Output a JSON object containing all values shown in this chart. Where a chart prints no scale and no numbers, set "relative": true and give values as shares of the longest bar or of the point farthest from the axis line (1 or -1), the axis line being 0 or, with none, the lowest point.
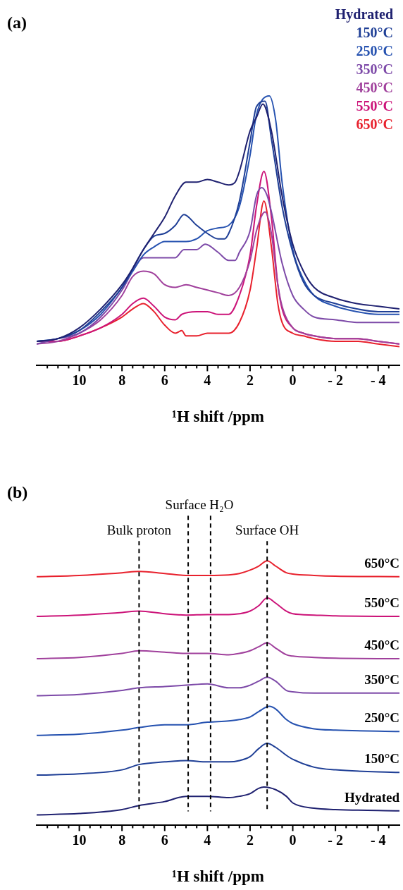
{
  "chart_data": [
    {
      "type": "line",
      "title": "(a)",
      "xlabel": "¹H shift /ppm",
      "relative": true,
      "legend": "top right",
      "xlim": [
        12,
        -5
      ],
      "xticks": [
        {
          "value": 11.5,
          "label": null
        },
        {
          "value": 11,
          "label": null
        },
        {
          "value": 10.5,
          "label": null
        },
        10,
        {
          "value": 9.5,
          "label": null
        },
        {
          "value": 9,
          "label": null
        },
        {
          "value": 8.5,
          "label": null
        },
        8,
        {
          "value": 7.5,
          "label": null
        },
        {
          "value": 7,
          "label": null
        },
        {
          "value": 6.5,
          "label": null
        },
        6,
        {
          "value": 5.5,
          "label": null
        },
        {
          "value": 5,
          "label": null
        },
        {
          "value": 4.5,
          "label": null
        },
        4,
        {
          "value": 3.5,
          "label": null
        },
        {
          "value": 3,
          "label": null
        },
        {
          "value": 2.5,
          "label": null
        },
        2,
        {
          "value": 1.5,
          "label": null
        },
        {
          "value": 1,
          "label": null
        },
        {
          "value": 0.5,
          "label": null
        },
        0,
        {
          "value": -0.5,
          "label": null
        },
        {
          "value": -1,
          "label": null
        },
        {
          "value": -1.5,
          "label": null
        },
        {
          "value": -2,
          "label": "- 2"
        },
        {
          "value": -2.5,
          "label": null
        },
        {
          "value": -3,
          "label": null
        },
        {
          "value": -3.5,
          "label": null
        },
        {
          "value": -4,
          "label": "- 4"
        },
        {
          "value": -4.5,
          "label": null
        }
      ],
      "series": [
        {
          "name": "Hydrated",
          "color": "#1f2170",
          "x": [
            12,
            11,
            10,
            9,
            8,
            7.5,
            7,
            6.5,
            6,
            5.5,
            5,
            4.5,
            4,
            3.5,
            3,
            2.7,
            2.5,
            2,
            1.7,
            1.4,
            1.0,
            0.5,
            0,
            -0.5,
            -1,
            -2,
            -3,
            -4,
            -5
          ],
          "values": [
            0.09,
            0.1,
            0.14,
            0.21,
            0.3,
            0.36,
            0.43,
            0.49,
            0.55,
            0.63,
            0.68,
            0.68,
            0.69,
            0.68,
            0.67,
            0.68,
            0.72,
            0.87,
            0.92,
            0.97,
            0.87,
            0.63,
            0.45,
            0.35,
            0.29,
            0.25,
            0.23,
            0.22,
            0.21
          ]
        },
        {
          "name": "150°C",
          "color": "#1f3f96",
          "x": [
            12,
            11,
            10,
            9,
            8,
            7.5,
            7,
            6.5,
            6,
            5.5,
            5.1,
            4.5,
            4,
            3.5,
            3.2,
            3,
            2.5,
            2,
            1.7,
            1.3,
            1.0,
            0.5,
            0,
            -0.5,
            -1,
            -2,
            -3,
            -4,
            -5
          ],
          "values": [
            0.09,
            0.1,
            0.13,
            0.2,
            0.29,
            0.36,
            0.43,
            0.48,
            0.49,
            0.52,
            0.56,
            0.52,
            0.49,
            0.47,
            0.47,
            0.49,
            0.61,
            0.83,
            0.96,
            0.98,
            0.84,
            0.59,
            0.42,
            0.31,
            0.26,
            0.23,
            0.21,
            0.2,
            0.2
          ]
        },
        {
          "name": "250°C",
          "color": "#2652b0",
          "x": [
            12,
            11,
            10,
            9,
            8,
            7.5,
            7,
            6.5,
            6,
            5.5,
            5,
            4.5,
            4,
            3.5,
            3,
            2.5,
            2,
            1.7,
            1.1,
            0.8,
            0.5,
            0,
            -0.5,
            -1,
            -2,
            -3,
            -4,
            -5
          ],
          "values": [
            0.09,
            0.1,
            0.13,
            0.19,
            0.29,
            0.35,
            0.41,
            0.44,
            0.46,
            0.46,
            0.46,
            0.47,
            0.5,
            0.51,
            0.52,
            0.59,
            0.78,
            0.93,
            1,
            0.91,
            0.68,
            0.43,
            0.32,
            0.26,
            0.22,
            0.2,
            0.19,
            0.19
          ]
        },
        {
          "name": "350°C",
          "color": "#7d4aa8",
          "x": [
            12,
            11,
            10,
            9,
            8,
            7.5,
            7,
            6.5,
            6,
            5.5,
            5.1,
            4.5,
            4.1,
            3.5,
            3,
            2.7,
            2.5,
            2,
            1.7,
            1.45,
            1.2,
            1.0,
            0.5,
            0,
            -0.5,
            -1,
            -2,
            -3,
            -4,
            -5
          ],
          "values": [
            0.08,
            0.1,
            0.12,
            0.18,
            0.28,
            0.35,
            0.4,
            0.4,
            0.4,
            0.4,
            0.43,
            0.43,
            0.45,
            0.42,
            0.39,
            0.39,
            0.42,
            0.5,
            0.63,
            0.66,
            0.63,
            0.57,
            0.38,
            0.26,
            0.21,
            0.18,
            0.17,
            0.16,
            0.16,
            0.16
          ]
        },
        {
          "name": "450°C",
          "color": "#a0409c",
          "x": [
            12,
            11,
            10,
            9,
            8,
            7.5,
            7,
            6.5,
            6,
            5.5,
            5,
            4.5,
            4,
            3.5,
            3,
            2.5,
            2,
            1.7,
            1.3,
            1.0,
            0.7,
            0.5,
            0,
            -0.5,
            -1,
            -2,
            -3,
            -4,
            -5
          ],
          "values": [
            0.08,
            0.09,
            0.12,
            0.17,
            0.26,
            0.33,
            0.35,
            0.34,
            0.3,
            0.29,
            0.3,
            0.29,
            0.28,
            0.27,
            0.26,
            0.29,
            0.39,
            0.5,
            0.57,
            0.49,
            0.3,
            0.22,
            0.14,
            0.12,
            0.11,
            0.1,
            0.1,
            0.09,
            0.08
          ]
        },
        {
          "name": "550°C",
          "color": "#cc1479",
          "x": [
            12,
            11,
            10,
            9,
            8,
            7.5,
            7,
            6.5,
            6,
            5.5,
            5.2,
            4.5,
            4,
            3.5,
            3,
            2.5,
            2,
            1.7,
            1.35,
            1.0,
            0.7,
            0.5,
            0,
            -0.5,
            -1,
            -2,
            -3,
            -4,
            -5
          ],
          "values": [
            0.09,
            0.09,
            0.11,
            0.14,
            0.19,
            0.23,
            0.25,
            0.22,
            0.18,
            0.17,
            0.19,
            0.2,
            0.2,
            0.19,
            0.19,
            0.26,
            0.41,
            0.59,
            0.72,
            0.55,
            0.3,
            0.21,
            0.14,
            0.12,
            0.11,
            0.1,
            0.1,
            0.09,
            0.08
          ]
        },
        {
          "name": "650°C",
          "color": "#e8212d",
          "x": [
            12,
            11,
            10,
            9,
            8,
            7.5,
            7,
            6.5,
            6,
            5.5,
            5.2,
            5,
            4.5,
            4,
            3.5,
            3,
            2.5,
            2,
            1.7,
            1.35,
            1.0,
            0.7,
            0.5,
            0,
            -0.5,
            -1,
            -2,
            -3,
            -4,
            -5
          ],
          "values": [
            0.09,
            0.09,
            0.11,
            0.14,
            0.18,
            0.21,
            0.23,
            0.2,
            0.15,
            0.12,
            0.13,
            0.11,
            0.11,
            0.12,
            0.12,
            0.12,
            0.16,
            0.28,
            0.43,
            0.61,
            0.44,
            0.23,
            0.16,
            0.12,
            0.11,
            0.1,
            0.09,
            0.09,
            0.08,
            0.07
          ]
        }
      ]
    },
    {
      "type": "line",
      "title": "(b)",
      "xlabel": "¹H shift /ppm",
      "relative": true,
      "xlim": [
        12,
        -5
      ],
      "xticks": [
        {
          "value": 11.5,
          "label": null
        },
        {
          "value": 11,
          "label": null
        },
        {
          "value": 10.5,
          "label": null
        },
        10,
        {
          "value": 9.5,
          "label": null
        },
        {
          "value": 9,
          "label": null
        },
        {
          "value": 8.5,
          "label": null
        },
        8,
        {
          "value": 7.5,
          "label": null
        },
        {
          "value": 7,
          "label": null
        },
        {
          "value": 6.5,
          "label": null
        },
        6,
        {
          "value": 5.5,
          "label": null
        },
        {
          "value": 5,
          "label": null
        },
        {
          "value": 4.5,
          "label": null
        },
        4,
        {
          "value": 3.5,
          "label": null
        },
        {
          "value": 3,
          "label": null
        },
        {
          "value": 2.5,
          "label": null
        },
        2,
        {
          "value": 1.5,
          "label": null
        },
        {
          "value": 1,
          "label": null
        },
        {
          "value": 0.5,
          "label": null
        },
        0,
        {
          "value": -0.5,
          "label": null
        },
        {
          "value": -1,
          "label": null
        },
        {
          "value": -1.5,
          "label": null
        },
        {
          "value": -2,
          "label": "- 2"
        },
        {
          "value": -2.5,
          "label": null
        },
        {
          "value": -3,
          "label": null
        },
        {
          "value": -3.5,
          "label": null
        },
        {
          "value": -4,
          "label": "- 4"
        },
        {
          "value": -4.5,
          "label": null
        }
      ],
      "ref_lines": [
        {
          "axis": "x",
          "value": 7.2,
          "label": "Bulk proton",
          "line_style": "dashed",
          "color": "#000000"
        },
        {
          "axis": "x",
          "value": 4.9,
          "label": "Surface H₂O",
          "line_style": "dashed",
          "color": "#000000"
        },
        {
          "axis": "x",
          "value": 3.85,
          "line_style": "dashed",
          "color": "#000000"
        },
        {
          "axis": "x",
          "value": 1.2,
          "label": "Surface OH",
          "line_style": "dashed",
          "color": "#000000"
        }
      ],
      "series": [
        {
          "name": "650°C",
          "color": "#e8212d",
          "x": [
            12,
            10,
            8,
            7.2,
            6,
            5,
            4,
            3,
            2.5,
            2,
            1.6,
            1.2,
            0.8,
            0.3,
            0,
            -1,
            -2,
            -5
          ],
          "values": [
            0.94,
            0.945,
            0.955,
            0.96,
            0.952,
            0.945,
            0.945,
            0.947,
            0.952,
            0.965,
            0.98,
            1,
            0.98,
            0.955,
            0.95,
            0.945,
            0.942,
            0.94
          ]
        },
        {
          "name": "550°C",
          "color": "#cc1479",
          "x": [
            12,
            10,
            8,
            7.2,
            6,
            5,
            4,
            3,
            2.5,
            2,
            1.6,
            1.2,
            0.8,
            0.3,
            0,
            -1,
            -2,
            -5
          ],
          "values": [
            0.79,
            0.795,
            0.805,
            0.81,
            0.8,
            0.795,
            0.797,
            0.797,
            0.8,
            0.81,
            0.83,
            0.86,
            0.84,
            0.81,
            0.8,
            0.795,
            0.792,
            0.79
          ]
        },
        {
          "name": "450°C",
          "color": "#a0409c",
          "x": [
            12,
            10,
            8,
            7.2,
            6,
            5,
            4,
            3,
            2.5,
            2,
            1.6,
            1.2,
            0.8,
            0.3,
            0,
            -1,
            -2,
            -5
          ],
          "values": [
            0.63,
            0.635,
            0.65,
            0.66,
            0.655,
            0.65,
            0.65,
            0.645,
            0.65,
            0.66,
            0.675,
            0.69,
            0.67,
            0.645,
            0.64,
            0.635,
            0.632,
            0.63
          ]
        },
        {
          "name": "350°C",
          "color": "#7d4aa8",
          "x": [
            12,
            10,
            8,
            7.2,
            6,
            5,
            4,
            3,
            2.5,
            2,
            1.6,
            1.2,
            0.8,
            0.3,
            0,
            -1,
            -2,
            -5
          ],
          "values": [
            0.49,
            0.495,
            0.51,
            0.52,
            0.525,
            0.53,
            0.535,
            0.52,
            0.52,
            0.53,
            0.545,
            0.56,
            0.545,
            0.51,
            0.505,
            0.5,
            0.5,
            0.5
          ]
        },
        {
          "name": "250°C",
          "color": "#2652b0",
          "x": [
            12,
            10,
            8,
            7.2,
            6,
            5,
            4,
            3,
            2.5,
            2,
            1.6,
            1.1,
            0.8,
            0.3,
            0,
            -1,
            -2,
            -5
          ],
          "values": [
            0.34,
            0.345,
            0.36,
            0.37,
            0.38,
            0.38,
            0.39,
            0.395,
            0.4,
            0.41,
            0.43,
            0.45,
            0.44,
            0.4,
            0.385,
            0.365,
            0.36,
            0.355
          ]
        },
        {
          "name": "150°C",
          "color": "#1f3f96",
          "x": [
            12,
            10,
            8,
            7.2,
            6,
            5,
            4,
            3,
            2.5,
            2,
            1.6,
            1.2,
            0.8,
            0.3,
            0,
            -1,
            -2,
            -5
          ],
          "values": [
            0.19,
            0.195,
            0.21,
            0.23,
            0.24,
            0.245,
            0.24,
            0.24,
            0.245,
            0.26,
            0.29,
            0.31,
            0.295,
            0.265,
            0.25,
            0.22,
            0.21,
            0.2
          ]
        },
        {
          "name": "Hydrated",
          "color": "#1f2170",
          "x": [
            12,
            10,
            8,
            7.2,
            6,
            5,
            4,
            3,
            2.5,
            2,
            1.6,
            1.35,
            0.8,
            0.3,
            0,
            -1,
            -2,
            -5
          ],
          "values": [
            0.04,
            0.045,
            0.06,
            0.075,
            0.09,
            0.11,
            0.11,
            0.105,
            0.11,
            0.12,
            0.14,
            0.145,
            0.135,
            0.11,
            0.085,
            0.065,
            0.06,
            0.055
          ]
        }
      ]
    }
  ]
}
